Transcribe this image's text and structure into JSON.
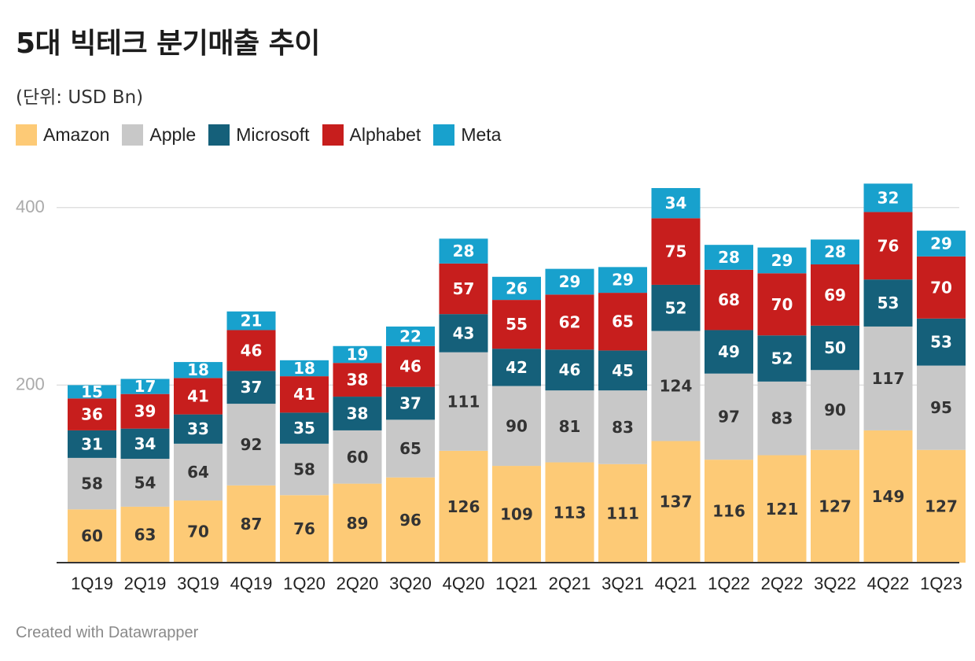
{
  "header": {
    "title": "5대 빅테크 분기매출 추이",
    "subtitle": "(단위: USD Bn)"
  },
  "footer": {
    "credit": "Created with Datawrapper"
  },
  "chart_data": {
    "type": "bar",
    "stacked": true,
    "categories": [
      "1Q19",
      "2Q19",
      "3Q19",
      "4Q19",
      "1Q20",
      "2Q20",
      "3Q20",
      "4Q20",
      "1Q21",
      "2Q21",
      "3Q21",
      "4Q21",
      "1Q22",
      "2Q22",
      "3Q22",
      "4Q22",
      "1Q23"
    ],
    "series": [
      {
        "name": "Amazon",
        "color": "#fdca76",
        "label_color": "#333333",
        "values": [
          60,
          63,
          70,
          87,
          76,
          89,
          96,
          126,
          109,
          113,
          111,
          137,
          116,
          121,
          127,
          149,
          127
        ]
      },
      {
        "name": "Apple",
        "color": "#c8c8c8",
        "label_color": "#333333",
        "values": [
          58,
          54,
          64,
          92,
          58,
          60,
          65,
          111,
          90,
          81,
          83,
          124,
          97,
          83,
          90,
          117,
          95
        ]
      },
      {
        "name": "Microsoft",
        "color": "#15607a",
        "label_color": "#ffffff",
        "values": [
          31,
          34,
          33,
          37,
          35,
          38,
          37,
          43,
          42,
          46,
          45,
          52,
          49,
          52,
          50,
          53,
          53
        ]
      },
      {
        "name": "Alphabet",
        "color": "#c71e1d",
        "label_color": "#ffffff",
        "values": [
          36,
          39,
          41,
          46,
          41,
          38,
          46,
          57,
          55,
          62,
          65,
          75,
          68,
          70,
          69,
          76,
          70
        ]
      },
      {
        "name": "Meta",
        "color": "#18a1cd",
        "label_color": "#ffffff",
        "values": [
          15,
          17,
          18,
          21,
          18,
          19,
          22,
          28,
          26,
          29,
          29,
          34,
          28,
          29,
          28,
          32,
          29
        ]
      }
    ],
    "y_ticks": [
      200,
      400
    ],
    "ylim": [
      0,
      420
    ],
    "grid": true,
    "legend_position": "top-left"
  }
}
